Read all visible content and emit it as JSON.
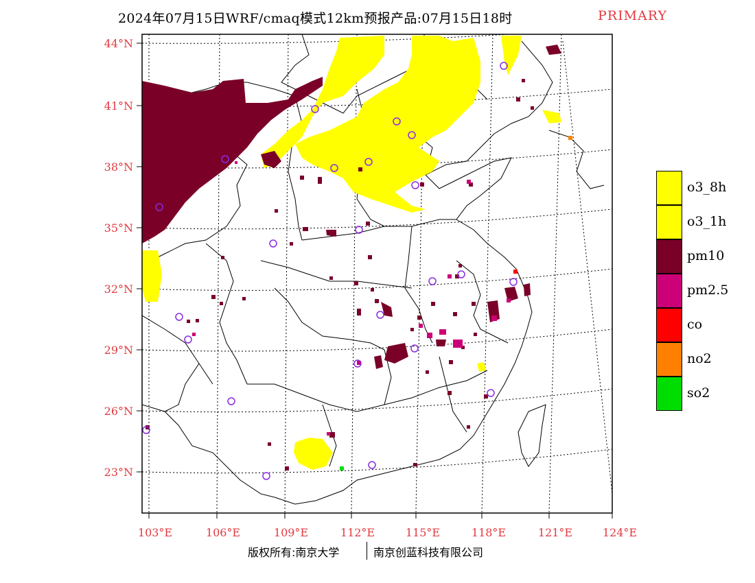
{
  "title": {
    "main": "2024年07月15日WRF/cmaq模式12km预报产品:07月15日18时",
    "tag": "PRIMARY"
  },
  "map": {
    "lat_labels": [
      "44°N",
      "41°N",
      "38°N",
      "35°N",
      "32°N",
      "29°N",
      "26°N",
      "23°N"
    ],
    "lon_labels": [
      "103°E",
      "106°E",
      "109°E",
      "112°E",
      "115°E",
      "118°E",
      "121°E",
      "124°E"
    ],
    "colors": {
      "o3": "#ffff00",
      "pm10": "#7a0028",
      "pm25": "#cc0077",
      "co": "#ff0000",
      "no2": "#ff8000",
      "so2": "#00dd00",
      "station_circle": "#8a2be2",
      "label": "#e2393f"
    }
  },
  "legend": [
    {
      "label": "o3_8h",
      "color": "#ffff00"
    },
    {
      "label": "o3_1h",
      "color": "#ffff00"
    },
    {
      "label": "pm10",
      "color": "#7a0028"
    },
    {
      "label": "pm2.5",
      "color": "#cc0077"
    },
    {
      "label": "co",
      "color": "#ff0000"
    },
    {
      "label": "no2",
      "color": "#ff8000"
    },
    {
      "label": "so2",
      "color": "#00dd00"
    }
  ],
  "footer": {
    "left": "版权所有:南京大学",
    "right": "南京创蓝科技有限公司"
  }
}
